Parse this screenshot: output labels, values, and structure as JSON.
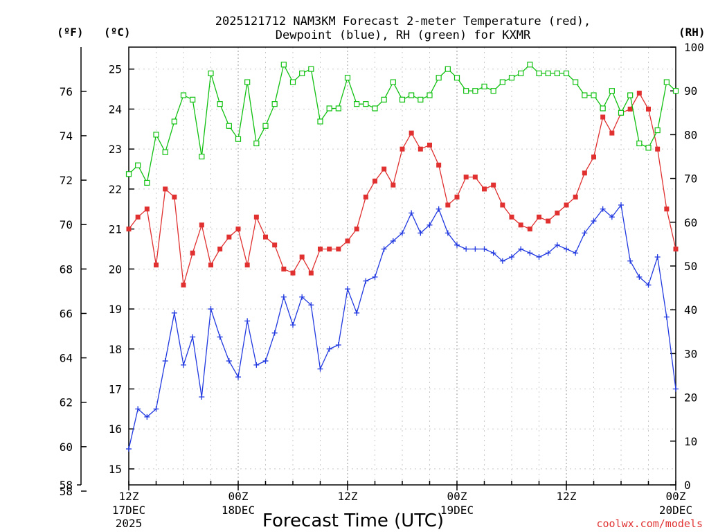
{
  "chart_data": {
    "type": "line",
    "title_lines": [
      "2025121712 NAM3KM Forecast 2-meter Temperature (red),",
      "Dewpoint (blue), RH (green) for KXMR"
    ],
    "left_units": [
      "(ºF)",
      "(ºC)"
    ],
    "right_unit": "(RH)",
    "xlabel": "Forecast Time (UTC)",
    "credit": "coolwx.com/models",
    "x_ticks": [
      {
        "hour": 0,
        "label": "12Z",
        "sub": [
          "17DEC",
          "2025"
        ]
      },
      {
        "hour": 12,
        "label": "00Z",
        "sub": [
          "18DEC"
        ]
      },
      {
        "hour": 24,
        "label": "12Z",
        "sub": []
      },
      {
        "hour": 36,
        "label": "00Z",
        "sub": [
          "19DEC"
        ]
      },
      {
        "hour": 48,
        "label": "12Z",
        "sub": []
      },
      {
        "hour": 60,
        "label": "00Z",
        "sub": [
          "20DEC"
        ]
      }
    ],
    "x_range_hours": [
      0,
      60
    ],
    "celsius_range": [
      14.6,
      25.55
    ],
    "fahrenheit_ticks": [
      58,
      60,
      62,
      64,
      66,
      68,
      70,
      72,
      74,
      76
    ],
    "celsius_ticks": [
      15,
      16,
      17,
      18,
      19,
      20,
      21,
      22,
      23,
      24,
      25
    ],
    "rh_range": [
      0,
      100
    ],
    "rh_ticks": [
      0,
      10,
      20,
      30,
      40,
      50,
      60,
      70,
      80,
      90,
      100
    ],
    "grid": true,
    "colors": {
      "temperature": "#e03030",
      "dewpoint": "#2038e0",
      "rh": "#10c010"
    },
    "series": [
      {
        "key": "temperature",
        "marker": "filled-square",
        "values": [
          21.0,
          21.3,
          21.5,
          20.1,
          22.0,
          21.8,
          19.6,
          20.4,
          21.1,
          20.1,
          20.5,
          20.8,
          21.0,
          20.1,
          21.3,
          20.8,
          20.6,
          20.0,
          19.9,
          20.3,
          19.9,
          20.5,
          20.5,
          20.5,
          20.7,
          21.0,
          21.8,
          22.2,
          22.5,
          22.1,
          23.0,
          23.4,
          23.0,
          23.1,
          22.6,
          21.6,
          21.8,
          22.3,
          22.3,
          22.0,
          22.1,
          21.6,
          21.3,
          21.1,
          21.0,
          21.3,
          21.2,
          21.4,
          21.6,
          21.8,
          22.4,
          22.8,
          23.8,
          23.4,
          23.9,
          24.0,
          24.4,
          24.0,
          23.0,
          21.5,
          20.5
        ]
      },
      {
        "key": "dewpoint",
        "marker": "plus",
        "values": [
          15.5,
          16.5,
          16.3,
          16.5,
          17.7,
          18.9,
          17.6,
          18.3,
          16.8,
          19.0,
          18.3,
          17.7,
          17.3,
          18.7,
          17.6,
          17.7,
          18.4,
          19.3,
          18.6,
          19.3,
          19.1,
          17.5,
          18.0,
          18.1,
          19.5,
          18.9,
          19.7,
          19.8,
          20.5,
          20.7,
          20.9,
          21.4,
          20.9,
          21.1,
          21.5,
          20.9,
          20.6,
          20.5,
          20.5,
          20.5,
          20.4,
          20.2,
          20.3,
          20.5,
          20.4,
          20.3,
          20.4,
          20.6,
          20.5,
          20.4,
          20.9,
          21.2,
          21.5,
          21.3,
          21.6,
          20.2,
          19.8,
          19.6,
          20.3,
          18.8,
          17.0
        ]
      },
      {
        "key": "rh",
        "marker": "open-square",
        "values": [
          71,
          73,
          69,
          80,
          76,
          83,
          89,
          88,
          75,
          94,
          87,
          82,
          79,
          92,
          78,
          82,
          87,
          96,
          92,
          94,
          95,
          83,
          86,
          86,
          93,
          87,
          87,
          86,
          88,
          92,
          88,
          89,
          88,
          89,
          93,
          95,
          93,
          90,
          90,
          91,
          90,
          92,
          93,
          94,
          96,
          94,
          94,
          94,
          94,
          92,
          89,
          89,
          86,
          90,
          85,
          89,
          78,
          77,
          81,
          92,
          90
        ]
      }
    ]
  }
}
